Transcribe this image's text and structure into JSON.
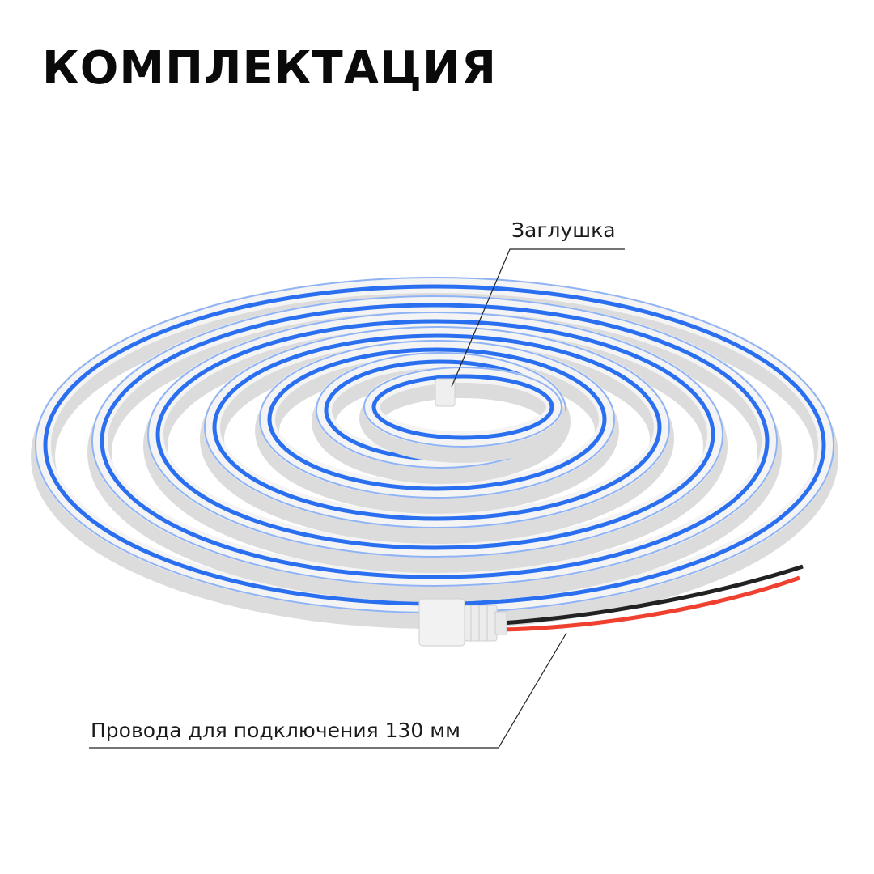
{
  "title": "КОМПЛЕКТАЦИЯ",
  "callouts": {
    "end_cap": "Заглушка",
    "wires": "Провода для подключения 130 мм"
  },
  "colors": {
    "neon_blue": "#2a6ff0",
    "housing": "#e6e6e6",
    "wire_red": "#f04030",
    "wire_black": "#222222"
  }
}
